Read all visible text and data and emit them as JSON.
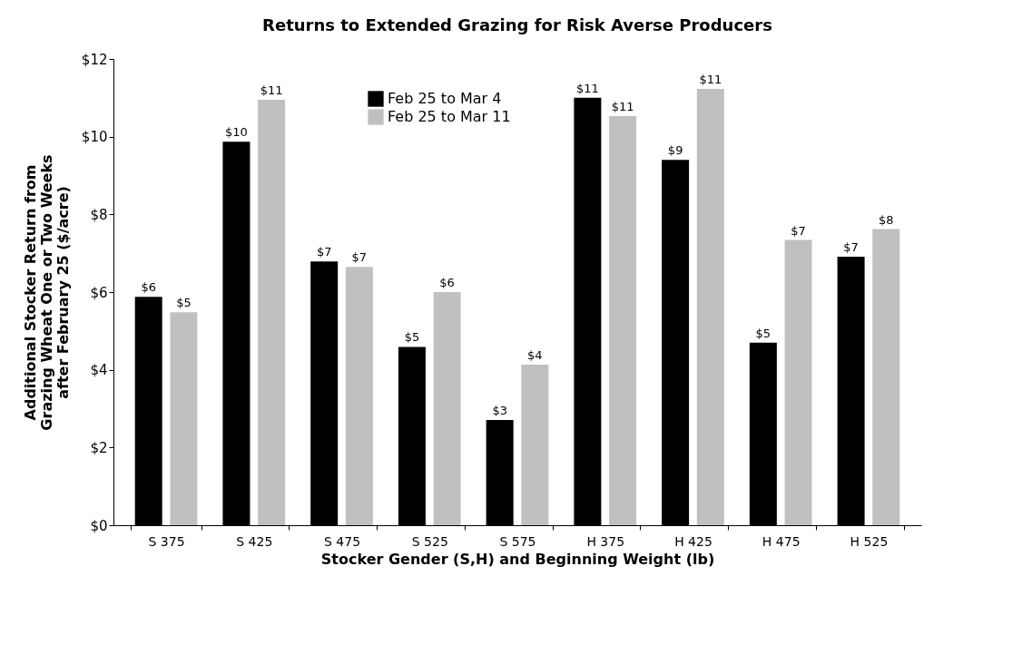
{
  "chart_data": {
    "type": "bar",
    "title": "Returns to Extended Grazing for Risk Averse Producers",
    "xlabel": "Stocker Gender (S,H) and Beginning Weight (lb)",
    "ylabel": "Additional Stocker Return from Grazing Wheat One or Two Weeks after February 25 ($/acre)",
    "categories": [
      "S 375",
      "S 425",
      "S 475",
      "S 525",
      "S 575",
      "H 375",
      "H 425",
      "H 475",
      "H 525"
    ],
    "series": [
      {
        "name": "Feb 25 to Mar 4",
        "color": "#000000",
        "values": [
          5.88,
          9.87,
          6.79,
          4.59,
          2.71,
          11.0,
          9.4,
          4.7,
          6.91
        ],
        "value_labels": [
          "$6",
          "$10",
          "$7",
          "$5",
          "$3",
          "$11",
          "$9",
          "$5",
          "$7"
        ]
      },
      {
        "name": "Feb 25 to Mar 11",
        "color": "#c0c0c0",
        "values": [
          5.48,
          10.95,
          6.65,
          6.0,
          4.13,
          10.53,
          11.23,
          7.34,
          7.62
        ],
        "value_labels": [
          "$5",
          "$11",
          "$7",
          "$6",
          "$4",
          "$11",
          "$11",
          "$7",
          "$8"
        ]
      }
    ],
    "ylim": [
      0,
      12
    ],
    "yticks": [
      {
        "value": 0,
        "label": "$0"
      },
      {
        "value": 2,
        "label": "$2"
      },
      {
        "value": 4,
        "label": "$4"
      },
      {
        "value": 6,
        "label": "$6"
      },
      {
        "value": 8,
        "label": "$8"
      },
      {
        "value": 10,
        "label": "$10"
      },
      {
        "value": 12,
        "label": "$12"
      }
    ],
    "grid": false,
    "legend": "top"
  }
}
